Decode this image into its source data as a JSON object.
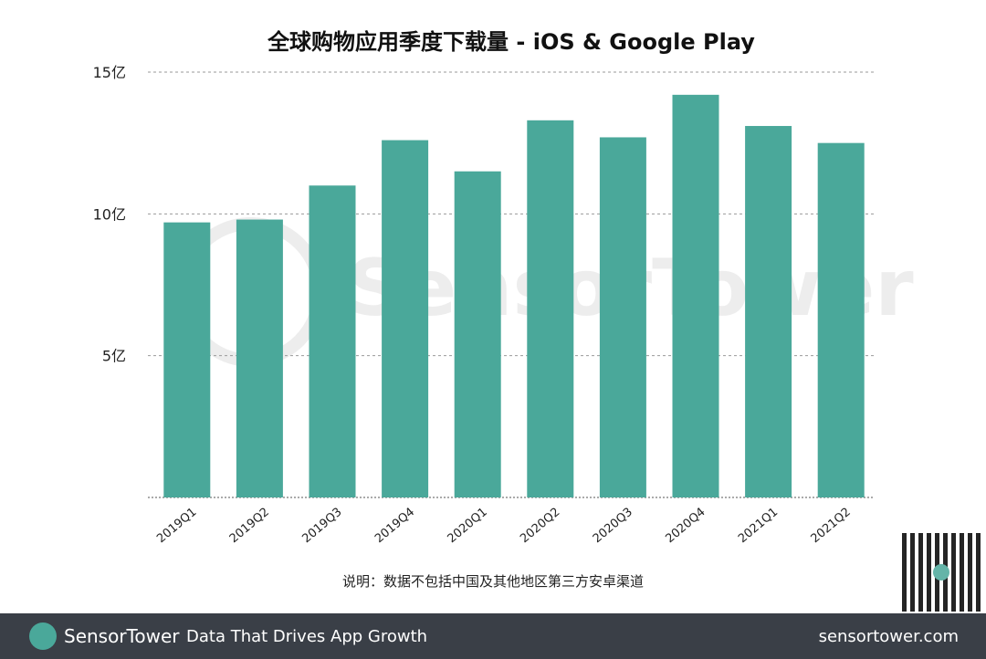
{
  "chart_data": {
    "type": "bar",
    "title": "全球购物应用季度下载量 - iOS & Google Play",
    "categories": [
      "2019Q1",
      "2019Q2",
      "2019Q3",
      "2019Q4",
      "2020Q1",
      "2020Q2",
      "2020Q3",
      "2020Q4",
      "2021Q1",
      "2021Q2"
    ],
    "values": [
      9.7,
      9.8,
      11.0,
      12.6,
      11.5,
      13.3,
      12.7,
      14.2,
      13.1,
      12.5
    ],
    "unit": "亿",
    "ylim": [
      0,
      15
    ],
    "yticks": [
      0,
      5,
      10,
      15
    ],
    "ytick_labels": [
      "",
      "5亿",
      "10亿",
      "15亿"
    ],
    "grid": true,
    "bar_color": "#4aa89a",
    "note": "说明：数据不包括中国及其他地区第三方安卓渠道"
  },
  "watermark": "SensorTower",
  "footer": {
    "brand": "SensorTower",
    "tagline": "Data That Drives App Growth",
    "url": "sensortower.com"
  }
}
